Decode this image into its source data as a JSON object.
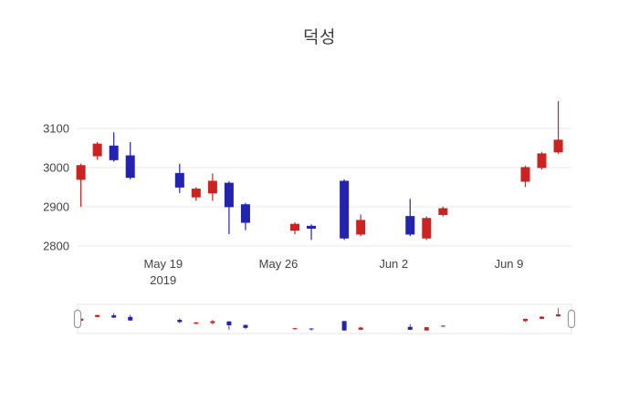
{
  "title": "덕성",
  "chart_data": {
    "type": "candlestick",
    "title": "덕성",
    "x_base_date": "2019-05-13",
    "xlim_days": [
      0.8,
      30.8
    ],
    "ylim": [
      2760,
      3200
    ],
    "y_ticks": [
      2800,
      2900,
      3000,
      3100
    ],
    "x_ticks": [
      {
        "date": "2019-05-19",
        "label": "May 19",
        "sub": "2019"
      },
      {
        "date": "2019-05-26",
        "label": "May 26"
      },
      {
        "date": "2019-06-02",
        "label": "Jun 2"
      },
      {
        "date": "2019-06-09",
        "label": "Jun 9"
      }
    ],
    "increasing_color": "#cc2222",
    "decreasing_color": "#2323b0",
    "grid_color": "#e9e9e9",
    "tick_color": "#444444",
    "rangeslider": {
      "enabled": true,
      "border_color": "#e6e6e6",
      "handle_fill": "#ffffff",
      "handle_border": "#999999"
    },
    "legend": "off",
    "candles": [
      {
        "date": "2019-05-14",
        "open": 2970,
        "high": 3010,
        "low": 2900,
        "close": 3005
      },
      {
        "date": "2019-05-15",
        "open": 3030,
        "high": 3065,
        "low": 3020,
        "close": 3060
      },
      {
        "date": "2019-05-16",
        "open": 3055,
        "high": 3090,
        "low": 3015,
        "close": 3020
      },
      {
        "date": "2019-05-17",
        "open": 3030,
        "high": 3065,
        "low": 2970,
        "close": 2975
      },
      {
        "date": "2019-05-20",
        "open": 2985,
        "high": 3010,
        "low": 2935,
        "close": 2950
      },
      {
        "date": "2019-05-21",
        "open": 2925,
        "high": 2950,
        "low": 2915,
        "close": 2945
      },
      {
        "date": "2019-05-22",
        "open": 2935,
        "high": 2985,
        "low": 2915,
        "close": 2965
      },
      {
        "date": "2019-05-23",
        "open": 2960,
        "high": 2965,
        "low": 2830,
        "close": 2900
      },
      {
        "date": "2019-05-24",
        "open": 2905,
        "high": 2910,
        "low": 2840,
        "close": 2860
      },
      {
        "date": "2019-05-27",
        "open": 2840,
        "high": 2860,
        "low": 2830,
        "close": 2855
      },
      {
        "date": "2019-05-28",
        "open": 2850,
        "high": 2855,
        "low": 2815,
        "close": 2845
      },
      {
        "date": "2019-05-30",
        "open": 2965,
        "high": 2970,
        "low": 2815,
        "close": 2820
      },
      {
        "date": "2019-05-31",
        "open": 2830,
        "high": 2880,
        "low": 2825,
        "close": 2865
      },
      {
        "date": "2019-06-03",
        "open": 2875,
        "high": 2920,
        "low": 2825,
        "close": 2830
      },
      {
        "date": "2019-06-04",
        "open": 2820,
        "high": 2875,
        "low": 2815,
        "close": 2870
      },
      {
        "date": "2019-06-05",
        "open": 2880,
        "high": 2900,
        "low": 2875,
        "close": 2895
      },
      {
        "date": "2019-06-10",
        "open": 2965,
        "high": 3005,
        "low": 2950,
        "close": 3000
      },
      {
        "date": "2019-06-11",
        "open": 3000,
        "high": 3040,
        "low": 2995,
        "close": 3035
      },
      {
        "date": "2019-06-12",
        "open": 3040,
        "high": 3170,
        "low": 3035,
        "close": 3070
      }
    ]
  }
}
